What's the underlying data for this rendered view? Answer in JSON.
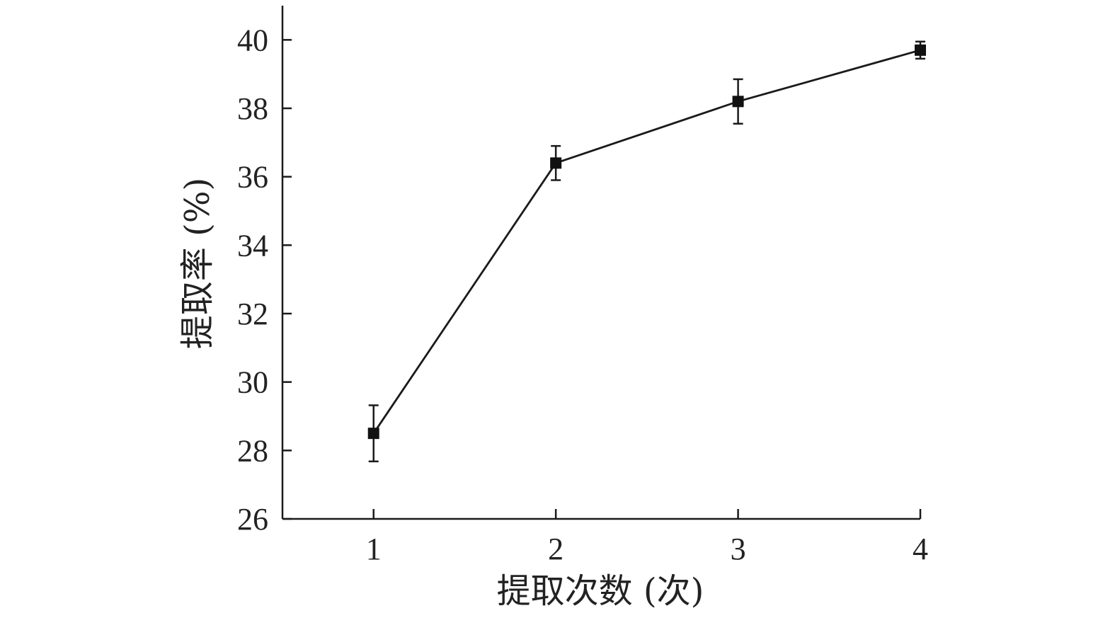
{
  "chart_data": {
    "type": "line",
    "title": "",
    "xlabel": "提取次数 (次)",
    "ylabel": "提取率 (%)",
    "x": [
      1,
      2,
      3,
      4
    ],
    "xticks": [
      "1",
      "2",
      "3",
      "4"
    ],
    "xlim": [
      0.5,
      4
    ],
    "ylim": [
      26,
      41
    ],
    "yticks": [
      26,
      28,
      30,
      32,
      34,
      36,
      38,
      40
    ],
    "grid": false,
    "series": [
      {
        "values": [
          28.5,
          36.4,
          38.2,
          39.7
        ],
        "errors": [
          0.82,
          0.5,
          0.65,
          0.25
        ]
      }
    ],
    "colors": {
      "line": "#1a1a1a",
      "marker": "#111111"
    }
  }
}
